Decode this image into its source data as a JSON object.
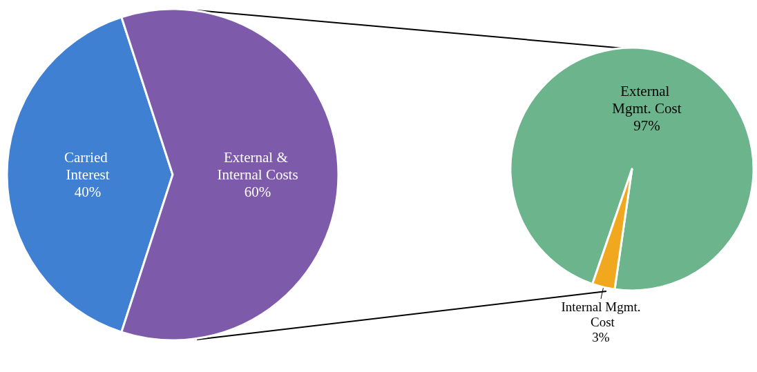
{
  "chart_data": [
    {
      "type": "pie",
      "categories": [
        "Carried Interest",
        "External & Internal Costs"
      ],
      "values": [
        40,
        60
      ],
      "colors": [
        "#3f80d2",
        "#7e5aab"
      ],
      "value_labels": [
        "40%",
        "60%"
      ]
    },
    {
      "type": "pie",
      "categories": [
        "External Mgmt. Cost",
        "Internal Mgmt. Cost"
      ],
      "values": [
        97,
        3
      ],
      "colors": [
        "#6cb48c",
        "#f2a81e"
      ],
      "value_labels": [
        "97%",
        "3%"
      ]
    }
  ]
}
